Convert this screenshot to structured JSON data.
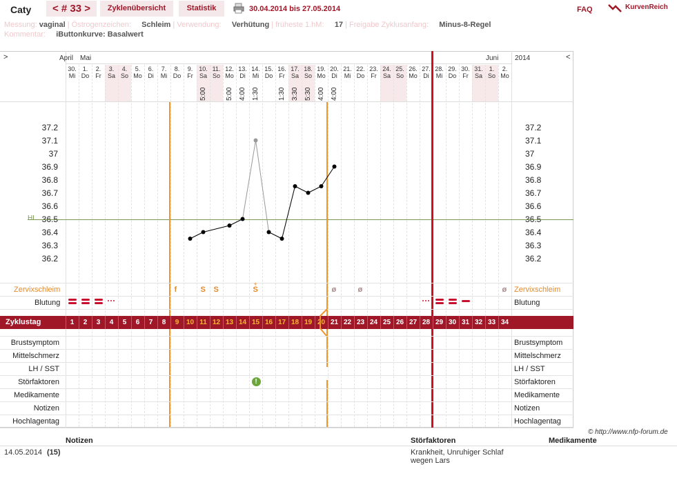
{
  "header": {
    "user": "Caty",
    "cycle": "< # 33 >",
    "tab_overview": "Zyklenübersicht",
    "tab_stats": "Statistik",
    "date_range": "30.04.2014 bis 27.05.2014",
    "faq": "FAQ",
    "logo": "KurvenReich"
  },
  "info": {
    "messung_label": "Messung:",
    "messung": "vaginal",
    "oestrogen_label": "Östrogenzeichen:",
    "oestrogen": "Schleim",
    "verwendung_label": "Verwendung:",
    "verwendung": "Verhütung",
    "hm_label": "früheste 1.hM:",
    "hm": "17",
    "freigabe_label": "Freigabe Zyklusanfang:",
    "freigabe": "Minus-8-Regel",
    "kommentar_label": "Kommentar:",
    "kommentar": "iButtonkurve: Basalwert"
  },
  "chart": {
    "nav_left": ">",
    "nav_right": "<",
    "months": {
      "april": "April",
      "mai": "Mai",
      "juni": "Juni",
      "year": "2014"
    },
    "hl_label": "HL",
    "days": [
      {
        "d": "30.",
        "w": "Mi"
      },
      {
        "d": "1.",
        "w": "Do"
      },
      {
        "d": "2.",
        "w": "Fr"
      },
      {
        "d": "3.",
        "w": "Sa"
      },
      {
        "d": "4.",
        "w": "So"
      },
      {
        "d": "5.",
        "w": "Mo"
      },
      {
        "d": "6.",
        "w": "Di"
      },
      {
        "d": "7.",
        "w": "Mi"
      },
      {
        "d": "8.",
        "w": "Do"
      },
      {
        "d": "9.",
        "w": "Fr"
      },
      {
        "d": "10.",
        "w": "Sa"
      },
      {
        "d": "11.",
        "w": "So"
      },
      {
        "d": "12.",
        "w": "Mo"
      },
      {
        "d": "13.",
        "w": "Di"
      },
      {
        "d": "14.",
        "w": "Mi"
      },
      {
        "d": "15.",
        "w": "Do"
      },
      {
        "d": "16.",
        "w": "Fr"
      },
      {
        "d": "17.",
        "w": "Sa"
      },
      {
        "d": "18.",
        "w": "So"
      },
      {
        "d": "19.",
        "w": "Mo"
      },
      {
        "d": "20.",
        "w": "Di"
      },
      {
        "d": "21.",
        "w": "Mi"
      },
      {
        "d": "22.",
        "w": "Do"
      },
      {
        "d": "23.",
        "w": "Fr"
      },
      {
        "d": "24.",
        "w": "Sa"
      },
      {
        "d": "25.",
        "w": "So"
      },
      {
        "d": "26.",
        "w": "Mo"
      },
      {
        "d": "27.",
        "w": "Di"
      },
      {
        "d": "28.",
        "w": "Mi"
      },
      {
        "d": "29.",
        "w": "Do"
      },
      {
        "d": "30.",
        "w": "Fr"
      },
      {
        "d": "31.",
        "w": "Sa"
      },
      {
        "d": "1.",
        "w": "So"
      },
      {
        "d": "2.",
        "w": "Mo"
      }
    ],
    "times": [
      {
        "day": 11,
        "t": "5:00"
      },
      {
        "day": 13,
        "t": "5:00"
      },
      {
        "day": 14,
        "t": "4:00"
      },
      {
        "day": 15,
        "t": "1:30"
      },
      {
        "day": 17,
        "t": "1:30"
      },
      {
        "day": 18,
        "t": "3:30"
      },
      {
        "day": 19,
        "t": "5:30"
      },
      {
        "day": 20,
        "t": "4:00"
      },
      {
        "day": 21,
        "t": "4:00"
      }
    ],
    "y_ticks": [
      "37.2",
      "37.1",
      "37",
      "36.9",
      "36.8",
      "36.7",
      "36.6",
      "36.5",
      "36.4",
      "36.3",
      "36.2"
    ],
    "zervix_label": "Zervixschleim",
    "zervix": [
      {
        "day": 9,
        "s": "f"
      },
      {
        "day": 11,
        "s": "S"
      },
      {
        "day": 12,
        "s": "S"
      },
      {
        "day": 15,
        "s": "S"
      },
      {
        "day": 21,
        "s": "ø"
      },
      {
        "day": 23,
        "s": "ø"
      },
      {
        "day": 34,
        "s": "ø"
      }
    ],
    "blutung_label": "Blutung",
    "zyklustag_label": "Zyklustag",
    "rows": [
      "Brustsymptom",
      "Mittelschmerz",
      "LH / SST",
      "Störfaktoren",
      "Medikamente",
      "Notizen",
      "Hochlagentag"
    ]
  },
  "chart_data": {
    "type": "line",
    "x": [
      10,
      11,
      13,
      14,
      15,
      16,
      17,
      18,
      19,
      20,
      21
    ],
    "y": [
      36.35,
      36.4,
      36.45,
      36.5,
      37.1,
      36.4,
      36.35,
      36.75,
      36.7,
      36.75,
      36.9
    ],
    "ylabel": "",
    "coverline": 36.5,
    "ylim": [
      36.1,
      37.3
    ]
  },
  "copyright": "© http://www.nfp-forum.de",
  "notes": {
    "h_notizen": "Notizen",
    "h_stoer": "Störfaktoren",
    "h_medi": "Medikamente",
    "date": "14.05.2014",
    "day": "(15)",
    "stoer_text": "Krankheit, Unruhiger Schlaf wegen Lars"
  }
}
